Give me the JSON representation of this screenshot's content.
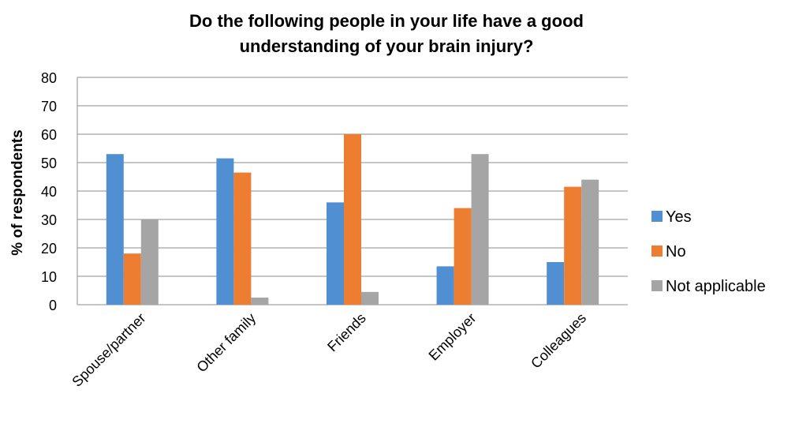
{
  "chart_data": {
    "type": "bar",
    "title_line1": "Do the following people in your life have a good",
    "title_line2": "understanding of your brain injury?",
    "xlabel": "",
    "ylabel": "% of respondents",
    "ylim": [
      0,
      80
    ],
    "yticks": [
      0,
      10,
      20,
      30,
      40,
      50,
      60,
      70,
      80
    ],
    "grid": true,
    "legend_position": "right",
    "categories": [
      "Spouse/partner",
      "Other family",
      "Friends",
      "Employer",
      "Colleagues"
    ],
    "series": [
      {
        "name": "Yes",
        "color": "#4f8fd2",
        "values": [
          53,
          51.5,
          36,
          13.5,
          15
        ]
      },
      {
        "name": "No",
        "color": "#ed7d31",
        "values": [
          18,
          46.5,
          60,
          34,
          41.5
        ]
      },
      {
        "name": "Not applicable",
        "color": "#a5a5a5",
        "values": [
          30,
          2.5,
          4.5,
          53,
          44
        ]
      }
    ]
  }
}
